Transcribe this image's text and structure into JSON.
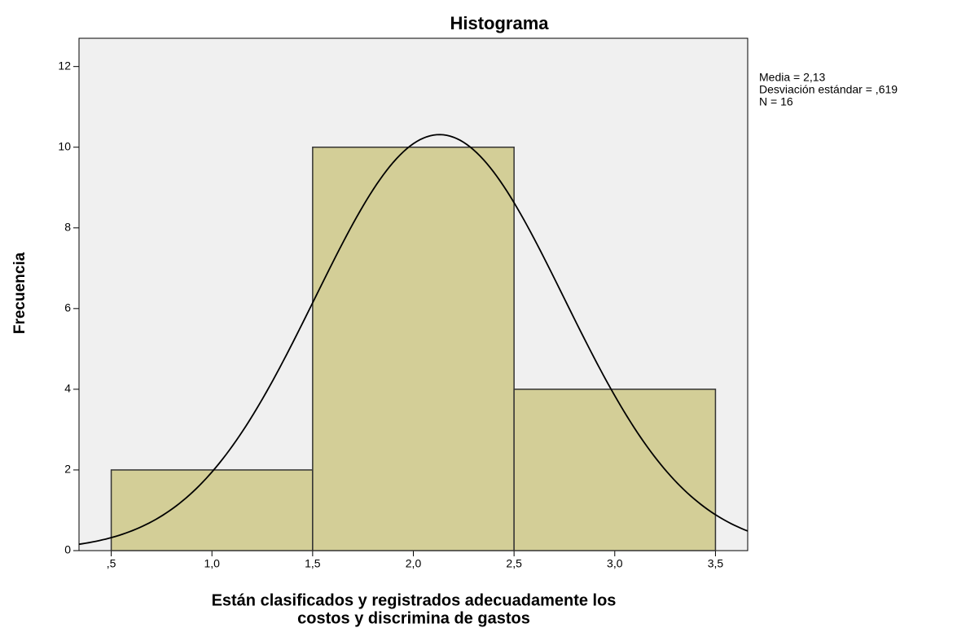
{
  "chart_data": {
    "type": "histogram",
    "title": "Histograma",
    "xlabel": [
      "Están clasificados y registrados adecuadamente los",
      "costos y discrimina de gastos"
    ],
    "ylabel": "Frecuencia",
    "bins": [
      0.5,
      1.5,
      2.5,
      3.5
    ],
    "values": [
      2,
      10,
      4
    ],
    "color": "#d3ce97",
    "xlim": [
      0.34,
      3.66
    ],
    "ylim": [
      0,
      12.7
    ],
    "xticks": [
      {
        "value": 0.5,
        "label": ",5"
      },
      {
        "value": 1.0,
        "label": "1,0"
      },
      {
        "value": 1.5,
        "label": "1,5"
      },
      {
        "value": 2.0,
        "label": "2,0"
      },
      {
        "value": 2.5,
        "label": "2,5"
      },
      {
        "value": 3.0,
        "label": "3,0"
      },
      {
        "value": 3.5,
        "label": "3,5"
      }
    ],
    "yticks": [
      0,
      2,
      4,
      6,
      8,
      10,
      12
    ],
    "annotations": [
      "Media = 2,13",
      "Desviación estándar = ,619",
      "N = 16"
    ],
    "curve": {
      "mean": 2.13,
      "sd": 0.619,
      "n": 16
    }
  }
}
